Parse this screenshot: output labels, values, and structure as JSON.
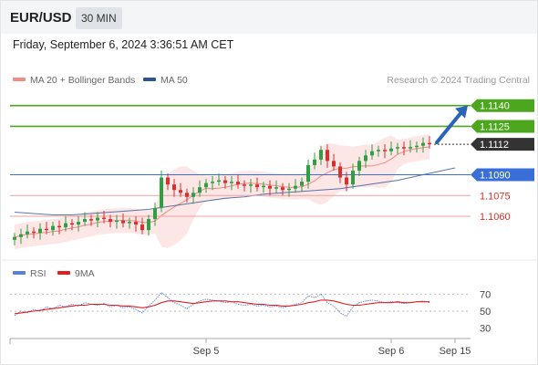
{
  "header": {
    "symbol": "EUR/USD",
    "timeframe": "30 MIN"
  },
  "datetime": "Friday, September 6, 2024 3:36:51 AM CET",
  "legend": {
    "ma20": {
      "label": "MA 20 + Bollinger Bands",
      "color": "#f28b82"
    },
    "ma50": {
      "label": "MA 50",
      "color": "#2f5496"
    }
  },
  "research": "Research © 2024 Trading Central",
  "colors": {
    "up": "#2f9e44",
    "down": "#d9302b",
    "resistance": "#4ca61e",
    "support": "#3a6fd8",
    "weak_support": "#f0a0a0",
    "current": "#333333",
    "band_fill": "#fde2e2"
  },
  "chart_data": [
    {
      "type": "line",
      "title": "",
      "ylim": [
        1.1031,
        1.1153
      ],
      "x_ticks": [
        {
          "label": "Sep 5",
          "index": 30
        },
        {
          "label": "Sep 6",
          "index": 59
        },
        {
          "label": "Sep 15",
          "index": 69
        }
      ],
      "levels": [
        {
          "value": 1.114,
          "label": "1.1140",
          "kind": "resistance"
        },
        {
          "value": 1.1125,
          "label": "1.1125",
          "kind": "resistance"
        },
        {
          "value": 1.1112,
          "label": "1.1112",
          "kind": "current"
        },
        {
          "value": 1.109,
          "label": "1.1090",
          "kind": "support"
        },
        {
          "value": 1.1075,
          "label": "1.1075",
          "kind": "weak_support"
        },
        {
          "value": 1.106,
          "label": "1.1060",
          "kind": "weak_support"
        }
      ],
      "candles_close": [
        1.1045,
        1.1047,
        1.1049,
        1.1048,
        1.1051,
        1.105,
        1.1053,
        1.1052,
        1.1055,
        1.1054,
        1.1056,
        1.1058,
        1.1057,
        1.1059,
        1.1058,
        1.1056,
        1.1057,
        1.1055,
        1.1056,
        1.1054,
        1.105,
        1.1058,
        1.1066,
        1.1088,
        1.1083,
        1.1079,
        1.1077,
        1.1074,
        1.1077,
        1.1081,
        1.1084,
        1.1085,
        1.1086,
        1.1084,
        1.1085,
        1.1083,
        1.1082,
        1.1083,
        1.1081,
        1.1082,
        1.108,
        1.1081,
        1.1079,
        1.108,
        1.1082,
        1.1085,
        1.1097,
        1.1101,
        1.1108,
        1.11,
        1.1096,
        1.1088,
        1.1083,
        1.1093,
        1.11,
        1.1104,
        1.1107,
        1.1108,
        1.1107,
        1.1109,
        1.111,
        1.1109,
        1.111,
        1.1111,
        1.1113,
        1.1112
      ],
      "ma50": [
        1.1063,
        1.1062,
        1.1061,
        1.1061,
        1.1062,
        1.1063,
        1.1064,
        1.1065,
        1.1067,
        1.1069,
        1.1071,
        1.1073,
        1.1074,
        1.1076,
        1.1077,
        1.1078,
        1.1079,
        1.108,
        1.1082,
        1.1084,
        1.1086,
        1.1089,
        1.1092,
        1.1095
      ],
      "ma50_start_index": 0,
      "ma50_step": 3,
      "forecast_target": 1.114
    },
    {
      "type": "line",
      "title": "",
      "ylim": [
        20,
        80
      ],
      "y_ticks": [
        70,
        50,
        30
      ],
      "series": [
        {
          "name": "RSI",
          "color": "#5b7fd8",
          "values": [
            45,
            50,
            48,
            52,
            50,
            55,
            53,
            57,
            55,
            58,
            56,
            60,
            58,
            57,
            59,
            55,
            57,
            54,
            55,
            52,
            48,
            56,
            63,
            72,
            66,
            60,
            57,
            53,
            58,
            62,
            64,
            63,
            62,
            60,
            61,
            58,
            57,
            58,
            56,
            57,
            55,
            56,
            54,
            56,
            58,
            60,
            68,
            66,
            70,
            60,
            56,
            48,
            44,
            55,
            60,
            62,
            63,
            62,
            60,
            61,
            60,
            59,
            60,
            61,
            62,
            60
          ]
        },
        {
          "name": "9MA",
          "color": "#e02020",
          "values": [
            47,
            48,
            49,
            50,
            51,
            52,
            53,
            54,
            55,
            56,
            57,
            57,
            58,
            58,
            58,
            57,
            57,
            56,
            56,
            55,
            54,
            55,
            57,
            60,
            62,
            62,
            61,
            60,
            59,
            60,
            61,
            62,
            62,
            62,
            61,
            61,
            60,
            59,
            58,
            58,
            57,
            57,
            56,
            56,
            57,
            58,
            60,
            61,
            63,
            63,
            62,
            60,
            58,
            57,
            57,
            58,
            59,
            60,
            60,
            60,
            61,
            60,
            60,
            61,
            61,
            61
          ]
        }
      ]
    }
  ]
}
